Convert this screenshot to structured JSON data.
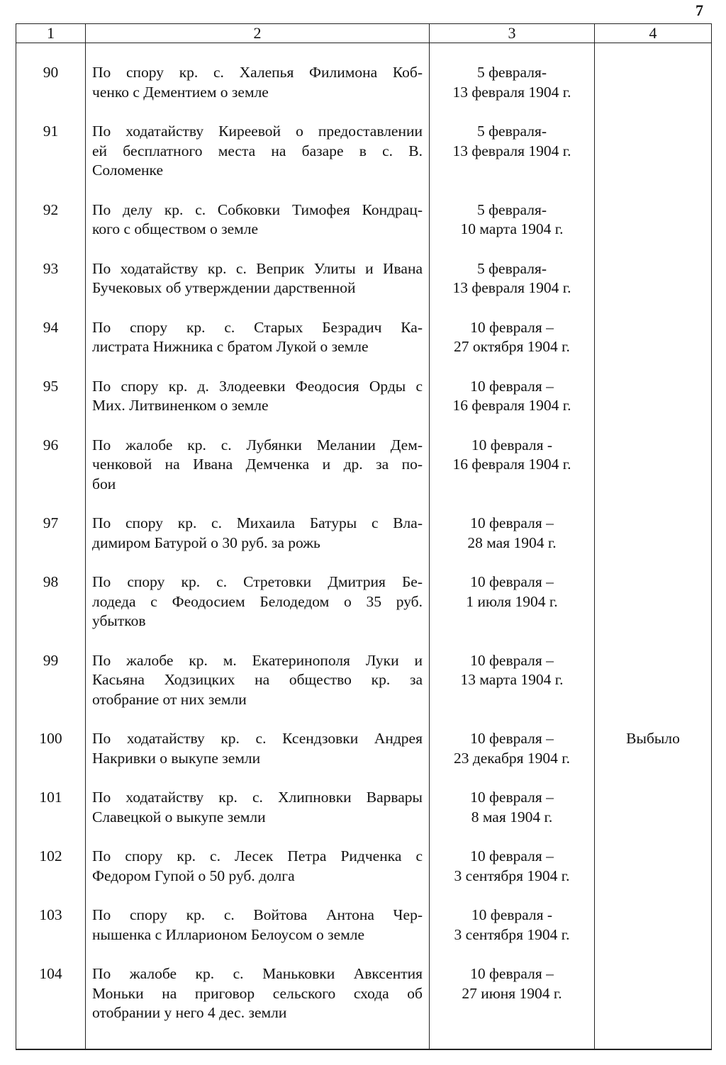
{
  "page_number": "7",
  "columns": [
    "1",
    "2",
    "3",
    "4"
  ],
  "rows": [
    {
      "num": "90",
      "desc": [
        "По спору  кр. с.  Халепья Филимона Коб-",
        "ченко с Дементием о земле"
      ],
      "date": [
        "5 февраля-",
        "13 февраля 1904 г."
      ],
      "note": ""
    },
    {
      "num": "91",
      "desc": [
        "По ходатайству  Киреевой о предоставлении",
        "ей бесплатного места на базаре в с. В.",
        "Соломенке"
      ],
      "date": [
        "5 февраля-",
        "13 февраля 1904 г."
      ],
      "note": ""
    },
    {
      "num": "92",
      "desc": [
        "По делу кр. с. Собковки Тимофея Кондрац-",
        "кого с обществом о земле"
      ],
      "date": [
        "5 февраля-",
        "10 марта 1904 г."
      ],
      "note": ""
    },
    {
      "num": "93",
      "desc": [
        "По ходатайству кр. с. Веприк Улиты и Ивана",
        "Бучековых  об утверждении дарственной"
      ],
      "date": [
        "5 февраля-",
        "13 февраля 1904 г."
      ],
      "note": ""
    },
    {
      "num": "94",
      "desc": [
        "По спору   кр. с. Старых Безрадич Ка-",
        "листрата Нижника с братом Лукой о земле"
      ],
      "date": [
        "10 февраля –",
        "27 октября 1904 г."
      ],
      "note": ""
    },
    {
      "num": "95",
      "desc": [
        "По спору  кр. д. Злодеевки Феодосия Орды с",
        "Мих. Литвиненком о земле"
      ],
      "date": [
        "10 февраля –",
        "16 февраля 1904 г."
      ],
      "note": ""
    },
    {
      "num": "96",
      "desc": [
        "По жалобе кр. с. Лубянки Мелании Дем-",
        "ченковой  на Ивана  Демченка и др. за по-",
        "бои"
      ],
      "date": [
        "10 февраля -",
        "16 февраля 1904 г."
      ],
      "note": ""
    },
    {
      "num": "97",
      "desc": [
        "По спору   кр. с. Михаила Батуры с Вла-",
        "димиром Батурой о 30 руб. за рожь"
      ],
      "date": [
        "10 февраля –",
        "28 мая 1904 г."
      ],
      "note": ""
    },
    {
      "num": "98",
      "desc": [
        "По спору   кр. с. Стретовки Дмитрия Бе-",
        "лодеда с Феодосием Белодедом о 35 руб.",
        "убытков"
      ],
      "date": [
        "10 февраля –",
        "1 июля 1904 г."
      ],
      "note": ""
    },
    {
      "num": "99",
      "desc": [
        "По жалобе кр. м. Екатеринополя Луки и",
        "Касьяна Ходзицких на общество кр. за",
        "отобрание от них земли"
      ],
      "date": [
        "10 февраля –",
        "13 марта 1904 г."
      ],
      "note": ""
    },
    {
      "num": "100",
      "desc": [
        "По ходатайству кр. с. Ксендзовки Андрея",
        "Накривки о выкупе земли"
      ],
      "date": [
        "10 февраля –",
        "23 декабря 1904 г."
      ],
      "note": "Выбыло"
    },
    {
      "num": "101",
      "desc": [
        "По ходатайству кр. с. Хлипновки Варвары",
        "Славецкой о выкупе земли"
      ],
      "date": [
        "10 февраля –",
        "8 мая 1904 г."
      ],
      "note": ""
    },
    {
      "num": "102",
      "desc": [
        "По спору   кр. с. Лесек Петра Ридченка с",
        "Федором Гупой  о 50 руб. долга"
      ],
      "date": [
        "10 февраля –",
        "3 сентября 1904 г."
      ],
      "note": ""
    },
    {
      "num": "103",
      "desc": [
        "По спору    кр. с. Войтова Антона Чер-",
        "нышенка с Илларионом Белоусом о земле"
      ],
      "date": [
        "10 февраля -",
        "3 сентября 1904 г."
      ],
      "note": ""
    },
    {
      "num": "104",
      "desc": [
        "По жалобе кр. с. Маньковки Авксентия",
        "Моньки на приговор сельского схода об",
        "отобрании у него 4 дес. земли"
      ],
      "date": [
        "10 февраля –",
        "27 июня 1904 г."
      ],
      "note": ""
    }
  ]
}
